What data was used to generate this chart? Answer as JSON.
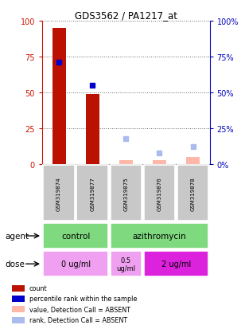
{
  "title": "GDS3562 / PA1217_at",
  "samples": [
    "GSM319874",
    "GSM319877",
    "GSM319875",
    "GSM319876",
    "GSM319878"
  ],
  "count_values": [
    95,
    49,
    3,
    3,
    5
  ],
  "count_absent": [
    false,
    false,
    true,
    true,
    true
  ],
  "rank_values": [
    71,
    55,
    18,
    8,
    12
  ],
  "rank_absent": [
    false,
    false,
    true,
    true,
    true
  ],
  "ylim": [
    0,
    100
  ],
  "yticks": [
    0,
    25,
    50,
    75,
    100
  ],
  "agent_color": "#7FD97F",
  "dose_color_light": "#F0A0F0",
  "dose_color_dark": "#DD22DD",
  "sample_box_color": "#C8C8C8",
  "bar_color_present": "#BB1100",
  "bar_color_absent": "#FFB8A8",
  "dot_color_present": "#0000CC",
  "dot_color_absent": "#AABBEE",
  "left_axis_color": "#CC1100",
  "right_axis_color": "#0000BB",
  "legend_items": [
    {
      "color": "#BB1100",
      "label": "count"
    },
    {
      "color": "#0000CC",
      "label": "percentile rank within the sample"
    },
    {
      "color": "#FFB8A8",
      "label": "value, Detection Call = ABSENT"
    },
    {
      "color": "#AABBEE",
      "label": "rank, Detection Call = ABSENT"
    }
  ],
  "n_samples": 5,
  "bar_width": 0.4
}
